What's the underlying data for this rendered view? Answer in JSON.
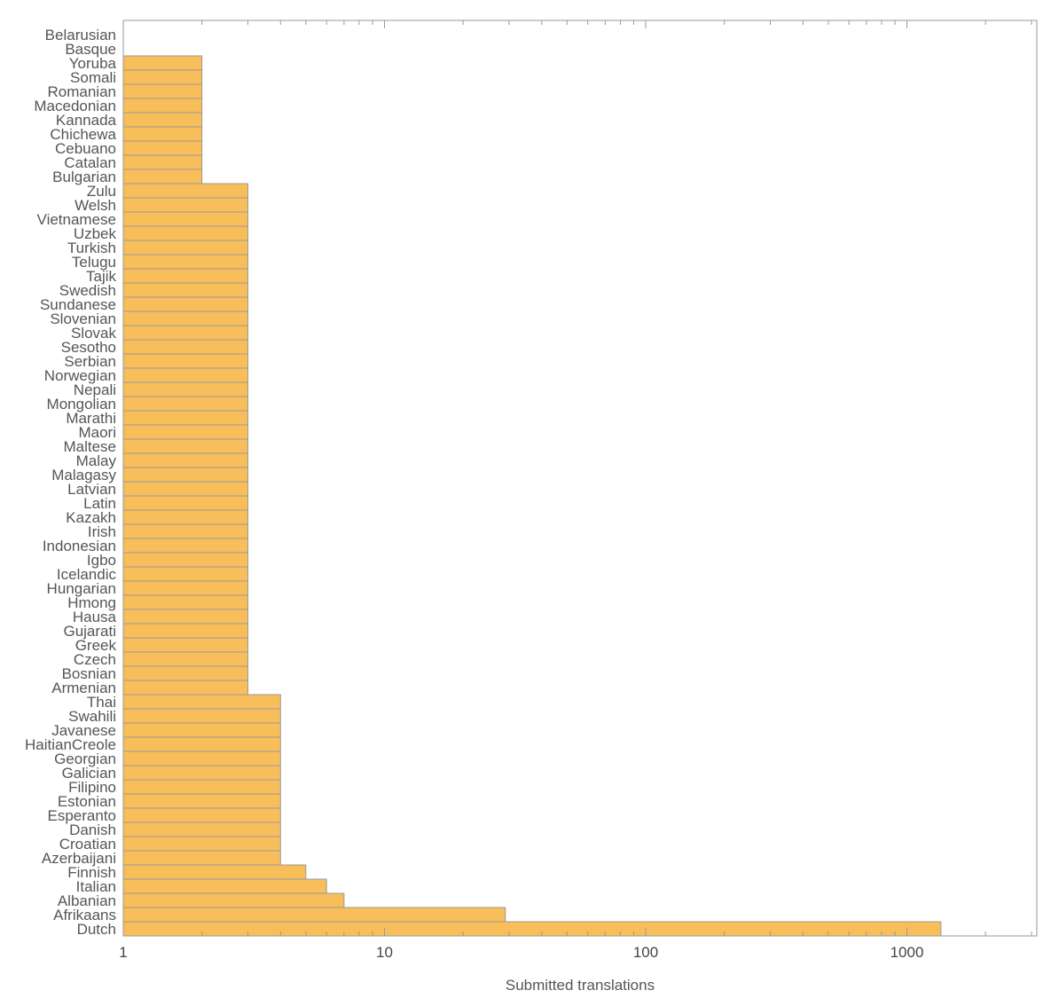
{
  "chart_data": {
    "type": "bar",
    "orientation": "horizontal",
    "x_scale": "log",
    "xlim": [
      1,
      3000
    ],
    "xticks": [
      1,
      10,
      100,
      1000
    ],
    "xtick_labels": [
      "1",
      "10",
      "100",
      "1000"
    ],
    "xlabel": "Submitted translations",
    "ylabel": "",
    "title": "",
    "grid": false,
    "bar_color": "#f8be5a",
    "categories": [
      "Belarusian",
      "Basque",
      "Yoruba",
      "Somali",
      "Romanian",
      "Macedonian",
      "Kannada",
      "Chichewa",
      "Cebuano",
      "Catalan",
      "Bulgarian",
      "Zulu",
      "Welsh",
      "Vietnamese",
      "Uzbek",
      "Turkish",
      "Telugu",
      "Tajik",
      "Swedish",
      "Sundanese",
      "Slovenian",
      "Slovak",
      "Sesotho",
      "Serbian",
      "Norwegian",
      "Nepali",
      "Mongolian",
      "Marathi",
      "Maori",
      "Maltese",
      "Malay",
      "Malagasy",
      "Latvian",
      "Latin",
      "Kazakh",
      "Irish",
      "Indonesian",
      "Igbo",
      "Icelandic",
      "Hungarian",
      "Hmong",
      "Hausa",
      "Gujarati",
      "Greek",
      "Czech",
      "Bosnian",
      "Armenian",
      "Thai",
      "Swahili",
      "Javanese",
      "HaitianCreole",
      "Georgian",
      "Galician",
      "Filipino",
      "Estonian",
      "Esperanto",
      "Danish",
      "Croatian",
      "Azerbaijani",
      "Finnish",
      "Italian",
      "Albanian",
      "Afrikaans",
      "Dutch"
    ],
    "values": [
      1,
      1,
      2,
      2,
      2,
      2,
      2,
      2,
      2,
      2,
      2,
      3,
      3,
      3,
      3,
      3,
      3,
      3,
      3,
      3,
      3,
      3,
      3,
      3,
      3,
      3,
      3,
      3,
      3,
      3,
      3,
      3,
      3,
      3,
      3,
      3,
      3,
      3,
      3,
      3,
      3,
      3,
      3,
      3,
      3,
      3,
      3,
      4,
      4,
      4,
      4,
      4,
      4,
      4,
      4,
      4,
      4,
      4,
      4,
      5,
      6,
      7,
      29,
      1350
    ]
  }
}
